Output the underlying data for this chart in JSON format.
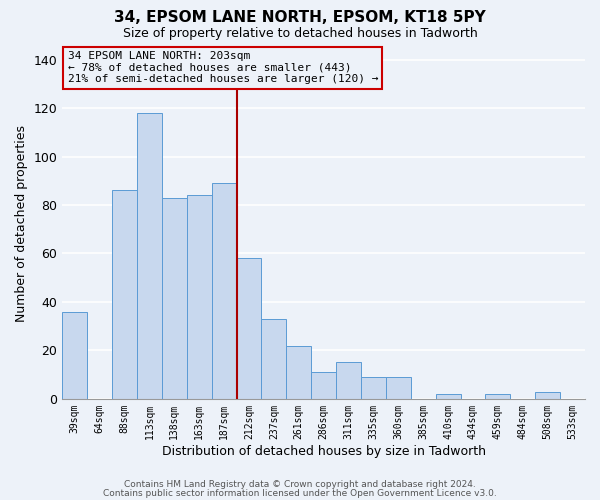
{
  "title": "34, EPSOM LANE NORTH, EPSOM, KT18 5PY",
  "subtitle": "Size of property relative to detached houses in Tadworth",
  "xlabel": "Distribution of detached houses by size in Tadworth",
  "ylabel": "Number of detached properties",
  "bar_labels": [
    "39sqm",
    "64sqm",
    "88sqm",
    "113sqm",
    "138sqm",
    "163sqm",
    "187sqm",
    "212sqm",
    "237sqm",
    "261sqm",
    "286sqm",
    "311sqm",
    "335sqm",
    "360sqm",
    "385sqm",
    "410sqm",
    "434sqm",
    "459sqm",
    "484sqm",
    "508sqm",
    "533sqm"
  ],
  "bar_values": [
    36,
    0,
    86,
    118,
    83,
    84,
    89,
    58,
    33,
    22,
    11,
    15,
    9,
    9,
    0,
    2,
    0,
    2,
    0,
    3,
    0
  ],
  "bar_color": "#c8d8ee",
  "bar_edgecolor": "#5b9bd5",
  "vline_x": 7.5,
  "vline_color": "#aa0000",
  "annotation_title": "34 EPSOM LANE NORTH: 203sqm",
  "annotation_line1": "← 78% of detached houses are smaller (443)",
  "annotation_line2": "21% of semi-detached houses are larger (120) →",
  "annotation_box_edgecolor": "#cc0000",
  "ylim": [
    0,
    145
  ],
  "yticks": [
    0,
    20,
    40,
    60,
    80,
    100,
    120,
    140
  ],
  "footer1": "Contains HM Land Registry data © Crown copyright and database right 2024.",
  "footer2": "Contains public sector information licensed under the Open Government Licence v3.0.",
  "bg_color": "#edf2f9",
  "grid_color": "#ffffff",
  "title_fontsize": 11,
  "subtitle_fontsize": 9
}
